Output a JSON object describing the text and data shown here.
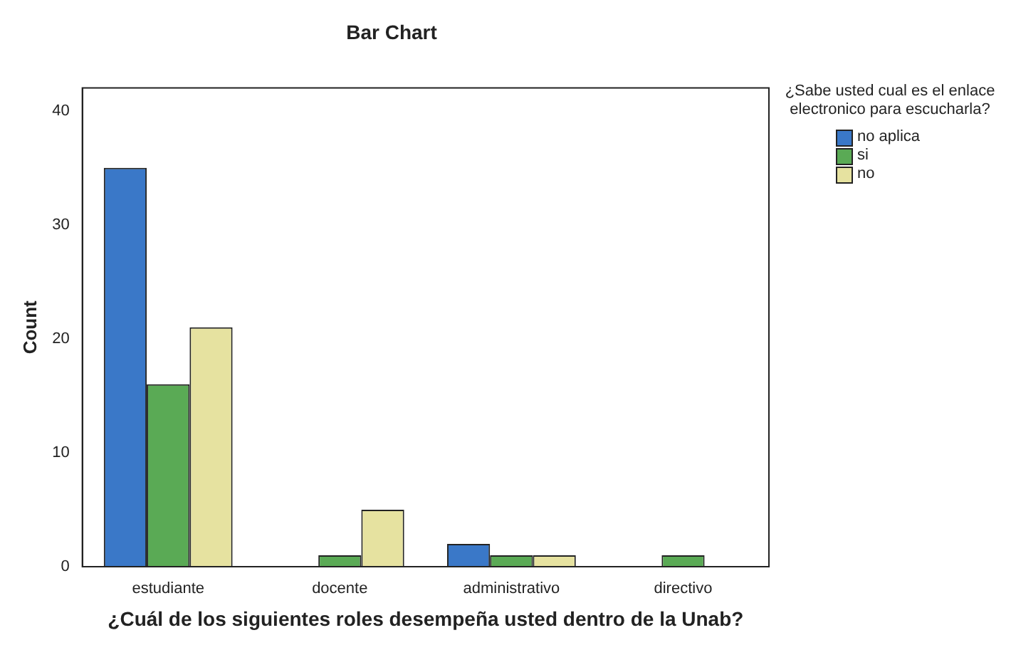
{
  "chart_data": {
    "type": "bar",
    "title": "Bar Chart",
    "xlabel": "¿Cuál de los siguientes roles desempeña usted dentro de la Unab?",
    "ylabel": "Count",
    "legend_title": "¿Sabe usted cual es el enlace electronico para escucharla?",
    "legend": "right",
    "grid": false,
    "categories": [
      "estudiante",
      "docente",
      "administrativo",
      "directivo"
    ],
    "series": [
      {
        "name": "no aplica",
        "color": "#3a78c8",
        "values": [
          35,
          0,
          2,
          0
        ]
      },
      {
        "name": "si",
        "color": "#5aaa55",
        "values": [
          16,
          1,
          1,
          1
        ]
      },
      {
        "name": "no",
        "color": "#e6e2a0",
        "values": [
          21,
          5,
          1,
          0
        ]
      }
    ],
    "ylim": [
      0,
      42
    ],
    "yticks": [
      0,
      10,
      20,
      30,
      40
    ]
  }
}
